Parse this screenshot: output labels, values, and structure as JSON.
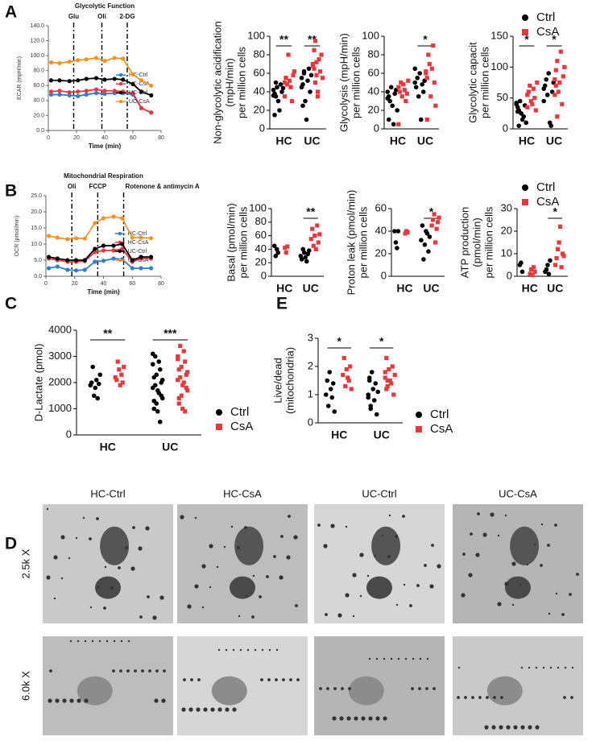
{
  "chart_data": [
    {
      "type": "line",
      "panel": "A",
      "title": "Glycolytic Function",
      "xlabel": "Time (min)",
      "ylabel": "ECAR (mpH/min)",
      "x": [
        2,
        8,
        15,
        21,
        27,
        34,
        40,
        47,
        53,
        60,
        66,
        73
      ],
      "xlim": [
        0,
        80
      ],
      "xticks": [
        0,
        20,
        40,
        60,
        80
      ],
      "ylim": [
        0,
        140
      ],
      "yticks": [
        {
          "value": 0,
          "label": "0.0"
        },
        {
          "value": 20,
          "label": "20.0"
        },
        {
          "value": 40,
          "label": "40.0"
        },
        {
          "value": 60,
          "label": "60.0"
        },
        {
          "value": 80,
          "label": "80.0"
        },
        {
          "value": 100,
          "label": "100.0"
        },
        {
          "value": 120,
          "label": "120.0"
        },
        {
          "value": 140,
          "label": "140.0"
        }
      ],
      "events": [
        {
          "x": 18,
          "label": "Glu"
        },
        {
          "x": 38,
          "label": "Oli"
        },
        {
          "x": 56,
          "label": "2-DG"
        }
      ],
      "series": [
        {
          "name": "HC-Ctrl",
          "color": "#2e7fc9",
          "values": [
            48,
            48,
            47,
            46,
            48,
            50,
            49,
            50,
            50,
            48,
            30,
            24
          ]
        },
        {
          "name": "HC-CsA",
          "color": "#e8383d",
          "values": [
            52,
            53,
            51,
            52,
            53,
            55,
            53,
            53,
            52,
            50,
            30,
            24
          ]
        },
        {
          "name": "UC-Ctrl",
          "color": "#000000",
          "values": [
            67,
            67,
            66,
            67,
            69,
            70,
            68,
            69,
            68,
            62,
            52,
            47
          ]
        },
        {
          "name": "UC-CsA",
          "color": "#f39325",
          "values": [
            91,
            90,
            92,
            94,
            95,
            97,
            93,
            97,
            96,
            75,
            67,
            60
          ]
        }
      ]
    },
    {
      "type": "strip",
      "ylabel": [
        "Non-glycolytic acidification",
        "(mpH/min)",
        "per million cells"
      ],
      "categories": [
        "HC",
        "UC"
      ],
      "ylim": [
        0,
        100
      ],
      "yticks": [
        0,
        20,
        40,
        60,
        80,
        100
      ],
      "significance": [
        "**",
        "**"
      ],
      "series": [
        {
          "color": "#000000",
          "marker": "circle",
          "values": [
            [
              42,
              38,
              35,
              45,
              30,
              20,
              48,
              40,
              44,
              36,
              15,
              50
            ],
            [
              55,
              48,
              60,
              30,
              10,
              52,
              65,
              40,
              58,
              45,
              25,
              62
            ]
          ]
        },
        {
          "color": "#e8383d",
          "marker": "square",
          "values": [
            [
              50,
              55,
              48,
              80,
              52,
              45,
              30,
              58,
              62,
              35,
              55
            ],
            [
              70,
              65,
              95,
              58,
              40,
              75,
              62,
              80,
              55,
              68,
              85,
              50,
              72,
              35
            ]
          ]
        }
      ]
    },
    {
      "type": "strip",
      "ylabel": [
        "Glycolysis (mpH/min)",
        "per million cells"
      ],
      "categories": [
        "HC",
        "UC"
      ],
      "ylim": [
        0,
        100
      ],
      "yticks": [
        0,
        20,
        40,
        60,
        80,
        100
      ],
      "significance": [
        null,
        "*"
      ],
      "series": [
        {
          "color": "#000000",
          "marker": "circle",
          "values": [
            [
              40,
              35,
              30,
              45,
              25,
              5,
              38,
              42,
              20,
              33,
              10
            ],
            [
              50,
              45,
              55,
              35,
              60,
              10,
              48,
              40,
              52,
              65
            ]
          ]
        },
        {
          "color": "#e8383d",
          "marker": "square",
          "values": [
            [
              45,
              40,
              50,
              35,
              48,
              42,
              30,
              38,
              52,
              5
            ],
            [
              60,
              55,
              80,
              70,
              35,
              65,
              90,
              50,
              25,
              62,
              10
            ]
          ]
        }
      ]
    },
    {
      "type": "strip",
      "ylabel": [
        "Glycolytic capacit",
        "per million cells"
      ],
      "categories": [
        "HC",
        "UC"
      ],
      "ylim": [
        0,
        150
      ],
      "yticks": [
        0,
        50,
        100,
        150
      ],
      "significance": [
        "*",
        "*"
      ],
      "series": [
        {
          "name": "Ctrl",
          "color": "#000000",
          "marker": "circle",
          "values": [
            [
              40,
              35,
              30,
              45,
              25,
              15,
              20,
              38,
              10,
              42,
              28,
              5
            ],
            [
              65,
              70,
              80,
              55,
              90,
              10,
              5,
              60,
              75,
              45
            ]
          ]
        },
        {
          "name": "CsA",
          "color": "#e8383d",
          "marker": "square",
          "values": [
            [
              55,
              60,
              70,
              45,
              40,
              65,
              50,
              30,
              75,
              35
            ],
            [
              80,
              95,
              110,
              60,
              75,
              125,
              40,
              85,
              100,
              55,
              70,
              20
            ]
          ]
        }
      ]
    },
    {
      "type": "line",
      "panel": "B",
      "title": "Mitochondrial Respiration",
      "xlabel": "Time (min)",
      "ylabel": "OCR (pmol/min)",
      "x": [
        2,
        8,
        15,
        21,
        27,
        34,
        40,
        47,
        53,
        60,
        66,
        73
      ],
      "xlim": [
        0,
        80
      ],
      "xticks": [
        0,
        20,
        40,
        60,
        80
      ],
      "ylim": [
        0,
        25
      ],
      "yticks": [
        {
          "value": 0,
          "label": "0.0"
        },
        {
          "value": 5,
          "label": "5.0"
        },
        {
          "value": 10,
          "label": "10.0"
        },
        {
          "value": 15,
          "label": "15.0"
        },
        {
          "value": 20,
          "label": "20.0"
        },
        {
          "value": 25,
          "label": "25.0"
        }
      ],
      "events": [
        {
          "x": 18,
          "label": "Oli"
        },
        {
          "x": 36,
          "label": "FCCP"
        },
        {
          "x": 54,
          "label": "Rotenone & antimycin A"
        }
      ],
      "series": [
        {
          "name": "HC-Ctrl",
          "color": "#2e7fc9",
          "values": [
            2.5,
            3,
            2,
            1.8,
            2,
            4.5,
            4.8,
            5.5,
            5.3,
            2.5,
            2.5,
            2.5
          ]
        },
        {
          "name": "HC-CsA",
          "color": "#e8383d",
          "values": [
            5.5,
            5,
            4.5,
            4.5,
            4.7,
            7.5,
            8,
            8,
            8.5,
            4.5,
            5.5,
            5.5
          ]
        },
        {
          "name": "UC-Ctrl",
          "color": "#000000",
          "values": [
            6,
            5.5,
            5,
            5,
            5,
            8.5,
            9.5,
            9.5,
            10,
            5,
            6,
            6
          ]
        },
        {
          "name": "UC-CsA",
          "color": "#f39325",
          "values": [
            12.5,
            12,
            11.5,
            11.8,
            11.7,
            16.5,
            18,
            18.5,
            18,
            12,
            12,
            11.8
          ]
        }
      ]
    },
    {
      "type": "strip",
      "ylabel": [
        "Basal (pmol/min)",
        "per million cells"
      ],
      "categories": [
        "HC",
        "UC"
      ],
      "ylim": [
        0,
        100
      ],
      "yticks": [
        0,
        20,
        40,
        60,
        80,
        100
      ],
      "significance": [
        null,
        "**"
      ],
      "series": [
        {
          "color": "#000000",
          "marker": "circle",
          "values": [
            [
              45,
              30,
              40,
              35
            ],
            [
              30,
              25,
              40,
              35,
              28,
              22,
              33,
              38
            ]
          ]
        },
        {
          "color": "#e8383d",
          "marker": "square",
          "values": [
            [
              42,
              35,
              44
            ],
            [
              55,
              70,
              45,
              60,
              40,
              75,
              50,
              62
            ]
          ]
        }
      ]
    },
    {
      "type": "strip",
      "ylabel": [
        "Proton leak (pmol/min)",
        "per million cells"
      ],
      "categories": [
        "HC",
        "UC"
      ],
      "ylim": [
        0,
        60
      ],
      "yticks": [
        0,
        20,
        40,
        60
      ],
      "significance": [
        null,
        "*"
      ],
      "series": [
        {
          "color": "#000000",
          "marker": "circle",
          "values": [
            [
              40,
              30,
              25,
              40
            ],
            [
              32,
              45,
              15,
              28,
              40,
              38,
              22,
              35
            ]
          ]
        },
        {
          "color": "#e8383d",
          "marker": "square",
          "values": [
            [
              38,
              40,
              39
            ],
            [
              45,
              50,
              55,
              30,
              42,
              48,
              52
            ]
          ]
        }
      ]
    },
    {
      "type": "strip",
      "ylabel": [
        "ATP production",
        "(pmol/min)",
        "per million cells"
      ],
      "categories": [
        "HC",
        "UC"
      ],
      "ylim": [
        0,
        30
      ],
      "yticks": [
        0,
        10,
        20,
        30
      ],
      "significance": [
        null,
        "*"
      ],
      "series": [
        {
          "name": "Ctrl",
          "color": "#000000",
          "marker": "circle",
          "values": [
            [
              5,
              6,
              2
            ],
            [
              2,
              3,
              5,
              1,
              7
            ]
          ]
        },
        {
          "name": "CsA",
          "color": "#e8383d",
          "marker": "square",
          "values": [
            [
              1,
              3,
              0.5,
              4,
              2
            ],
            [
              5,
              8,
              12,
              15,
              22,
              4,
              10,
              9
            ]
          ]
        }
      ]
    },
    {
      "type": "strip",
      "panel": "C",
      "ylabel": [
        "D-Lactate (pmol)"
      ],
      "categories": [
        "HC",
        "UC"
      ],
      "ylim": [
        0,
        4000
      ],
      "yticks": [
        0,
        1000,
        2000,
        3000,
        4000
      ],
      "significance": [
        "**",
        "***"
      ],
      "series": [
        {
          "name": "Ctrl",
          "color": "#000000",
          "marker": "circle",
          "values": [
            [
              1900,
              2000,
              2600,
              1500,
              1800,
              2100,
              1400,
              1950,
              2300
            ],
            [
              1800,
              2200,
              3000,
              1200,
              900,
              1600,
              2500,
              2000,
              1400,
              2700,
              1000,
              1900,
              2300,
              1700,
              2800,
              500,
              1500,
              2100,
              3100,
              1300
            ]
          ]
        },
        {
          "name": "CsA",
          "color": "#e8383d",
          "marker": "square",
          "values": [
            [
              2200,
              2100,
              2800,
              2500,
              1900,
              2300,
              2000,
              2600
            ],
            [
              2100,
              2500,
              3400,
              1500,
              1000,
              2000,
              2800,
              2300,
              1700,
              3000,
              1200,
              2200,
              2600,
              1900,
              3200,
              900,
              1800,
              2400,
              2900,
              1400
            ]
          ]
        }
      ]
    },
    {
      "type": "strip",
      "panel": "E",
      "ylabel": [
        "Live/dead",
        "(mitochondria)"
      ],
      "categories": [
        "HC",
        "UC"
      ],
      "ylim": [
        0,
        3
      ],
      "yticks": [
        0,
        1,
        2,
        3
      ],
      "significance": [
        "*",
        "*"
      ],
      "series": [
        {
          "name": "Ctrl",
          "color": "#000000",
          "marker": "circle",
          "values": [
            [
              1.0,
              1.5,
              0.6,
              1.8,
              1.2,
              0.9,
              1.4,
              0.4
            ],
            [
              1.0,
              1.5,
              0.5,
              1.8,
              1.2,
              0.8,
              1.4,
              0.3,
              1.1,
              0.9,
              1.6,
              0.6
            ]
          ]
        },
        {
          "name": "CsA",
          "color": "#e8383d",
          "marker": "square",
          "values": [
            [
              1.7,
              2.3,
              1.3,
              1.9,
              1.6,
              1.5,
              2.0,
              1.2
            ],
            [
              1.6,
              2.3,
              1.3,
              1.9,
              1.5,
              1.4,
              2.0,
              1.0,
              1.7,
              1.8,
              1.2,
              1.5
            ]
          ]
        }
      ]
    }
  ],
  "micrographs": {
    "panel": "D",
    "columns": [
      "HC-Ctrl",
      "HC-CsA",
      "UC-Ctrl",
      "UC-CsA"
    ],
    "rows": [
      "2.5k X",
      "6.0k X"
    ]
  }
}
